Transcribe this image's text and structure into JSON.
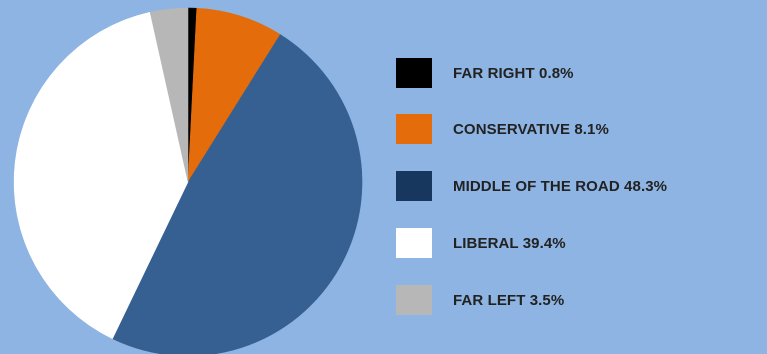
{
  "chart_data": {
    "type": "pie",
    "title": "",
    "start_angle_deg": 0,
    "direction": "clockwise",
    "legend_position": "right",
    "slices": [
      {
        "label": "FAR RIGHT",
        "value": 0.8,
        "display": "FAR RIGHT 0.8%",
        "color": "#000000"
      },
      {
        "label": "CONSERVATIVE",
        "value": 8.1,
        "display": "CONSERVATIVE 8.1%",
        "color": "#e46c0a"
      },
      {
        "label": "MIDDLE OF THE ROAD",
        "value": 48.3,
        "display": "MIDDLE OF THE ROAD 48.3%",
        "color": "#366092"
      },
      {
        "label": "LIBERAL",
        "value": 39.4,
        "display": "LIBERAL 39.4%",
        "color": "#ffffff"
      },
      {
        "label": "FAR LEFT",
        "value": 3.5,
        "display": "FAR LEFT 3.5%",
        "color": "#b7b7b7"
      }
    ],
    "legend_swatch_colors": [
      "#000000",
      "#e46c0a",
      "#17375e",
      "#ffffff",
      "#b7b7b7"
    ]
  },
  "colors": {
    "background": "#8db4e2"
  }
}
